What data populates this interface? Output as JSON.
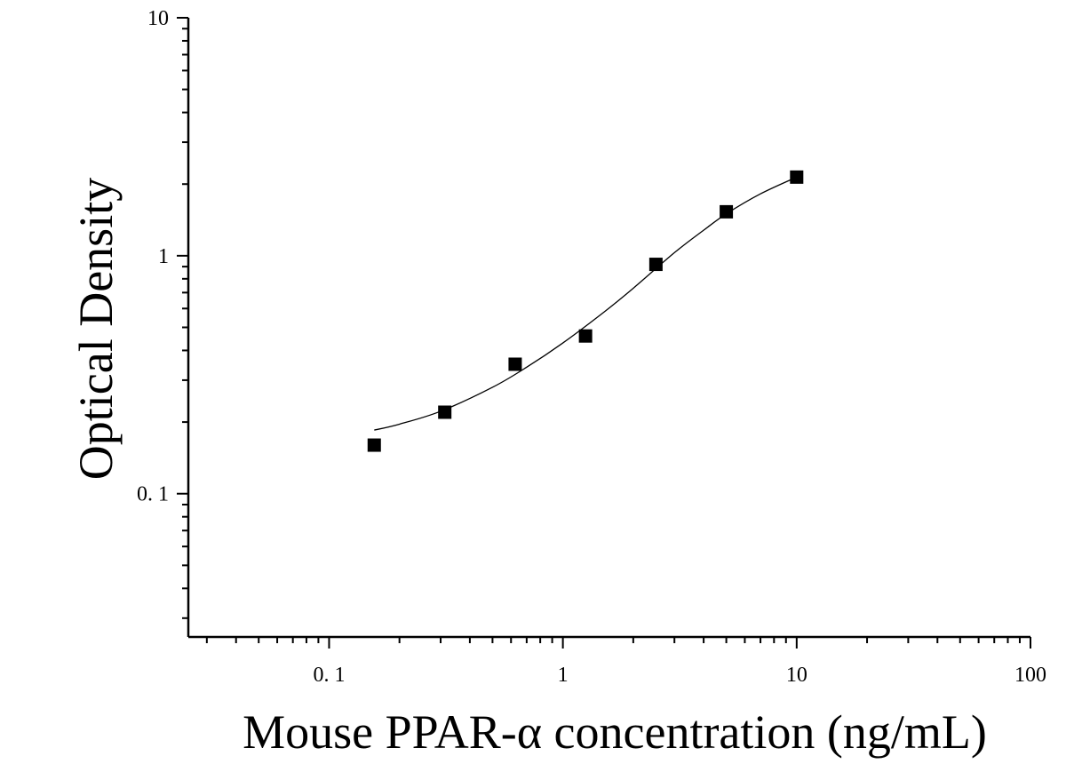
{
  "chart_data": {
    "type": "scatter",
    "title": "",
    "xlabel": "Mouse PPAR-α concentration (ng/mL)",
    "ylabel": "Optical Density",
    "x_scale": "log",
    "y_scale": "log",
    "xlim": [
      0.025,
      100
    ],
    "ylim": [
      0.025,
      10
    ],
    "x_ticks": [
      0.1,
      1,
      10,
      100
    ],
    "x_tick_labels": [
      "0. 1",
      "1",
      "10",
      "100"
    ],
    "y_ticks": [
      0.1,
      1,
      10
    ],
    "y_tick_labels": [
      "0. 1",
      "1",
      "10"
    ],
    "grid": false,
    "legend": false,
    "series": [
      {
        "marker": "square",
        "color": "#000000",
        "x": [
          0.156,
          0.3125,
          0.625,
          1.25,
          2.5,
          5,
          10
        ],
        "y": [
          0.16,
          0.22,
          0.35,
          0.46,
          0.92,
          1.53,
          2.14
        ]
      }
    ],
    "fit_curve": {
      "type": "4PL",
      "color": "#000000",
      "x": [
        0.156,
        0.2,
        0.3,
        0.5,
        0.7,
        1,
        1.5,
        2,
        3,
        4,
        5,
        7,
        10
      ],
      "y": [
        0.185,
        0.196,
        0.222,
        0.28,
        0.34,
        0.43,
        0.58,
        0.73,
        1.03,
        1.28,
        1.5,
        1.82,
        2.14
      ]
    }
  }
}
